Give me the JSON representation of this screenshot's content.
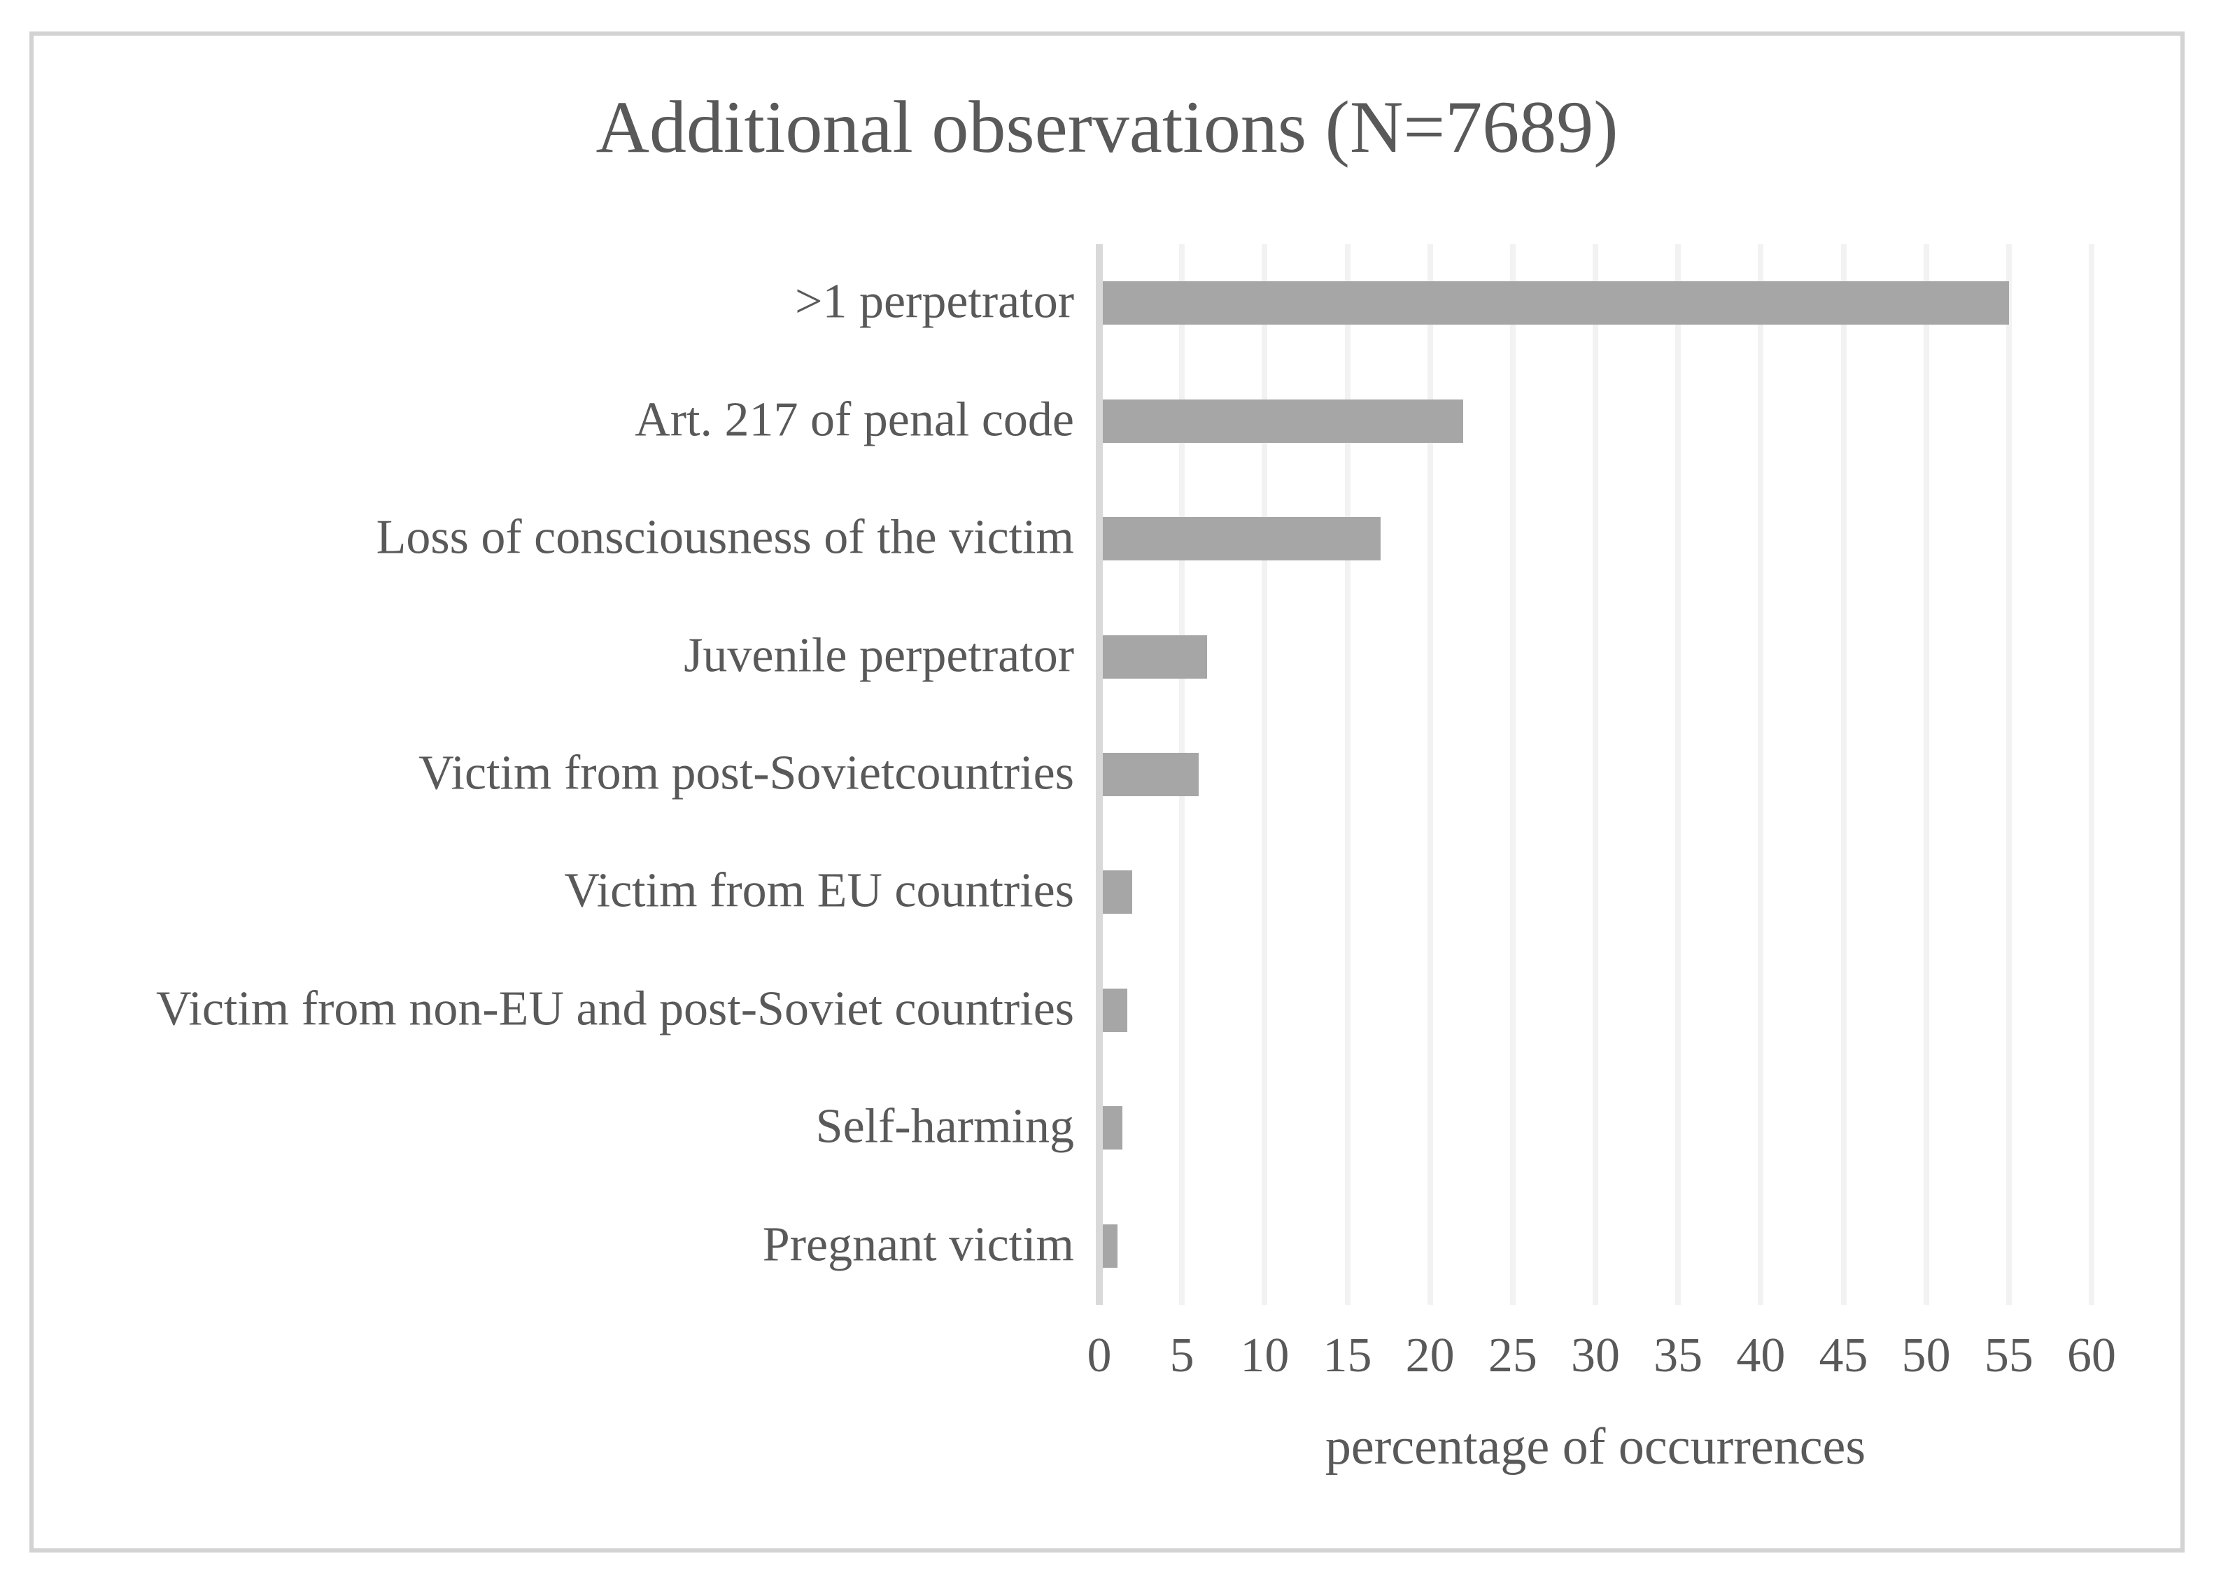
{
  "chart_data": {
    "type": "bar",
    "orientation": "horizontal",
    "title": "Additional observations (N=7689)",
    "categories": [
      ">1 perpetrator",
      "Art. 217 of penal code",
      "Loss of consciousness of the victim",
      "Juvenile perpetrator",
      "Victim from post-Sovietcountries",
      "Victim from EU countries",
      "Victim from non-EU and post-Soviet countries",
      "Self-harming",
      "Pregnant victim"
    ],
    "values": [
      55,
      22,
      17,
      6.5,
      6,
      2,
      1.7,
      1.4,
      1.1
    ],
    "xlabel": "percentage of occurrences",
    "xlim": [
      0,
      60
    ],
    "xtick_step": 5,
    "xticks": [
      0,
      5,
      10,
      15,
      20,
      25,
      30,
      35,
      40,
      45,
      50,
      55,
      60
    ],
    "grid": "vertical gridlines every 5, horizontal none",
    "legend": "none",
    "colors": {
      "bar": "#a6a6a6",
      "gridline": "#f2f2f2",
      "zero_axis_line": "#d9d9d9",
      "text": "#595959",
      "frame_border": "#d3d3d3",
      "background": "#ffffff"
    }
  }
}
